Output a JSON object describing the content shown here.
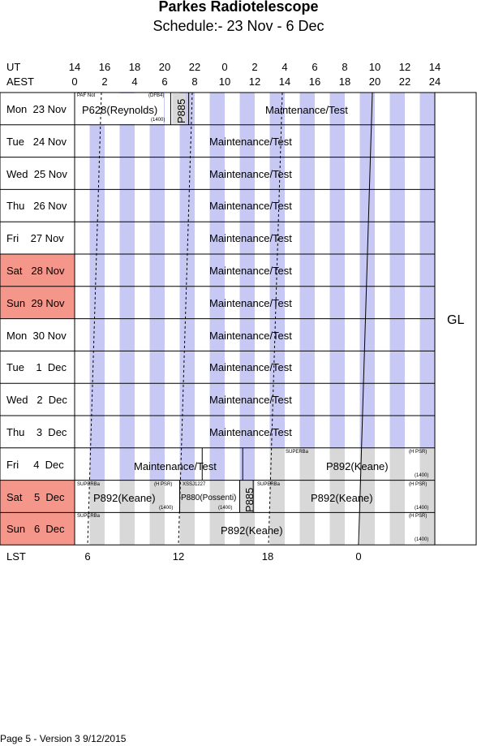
{
  "title": "Parkes Radiotelescope",
  "subtitle": "Schedule:- 23 Nov - 6  Dec",
  "axis": {
    "ut_label": "UT",
    "aest_label": "AEST",
    "ut_ticks": [
      "14",
      "16",
      "18",
      "20",
      "22",
      "0",
      "2",
      "4",
      "6",
      "8",
      "10",
      "12",
      "14"
    ],
    "aest_ticks": [
      "0",
      "2",
      "4",
      "6",
      "8",
      "10",
      "12",
      "14",
      "16",
      "18",
      "20",
      "22",
      "24"
    ],
    "lst_label": "LST",
    "lst_ticks": [
      "6",
      "12",
      "18",
      "0"
    ]
  },
  "days": [
    {
      "label": "Mon  23 Nov",
      "weekend": false
    },
    {
      "label": "Tue   24 Nov",
      "weekend": false
    },
    {
      "label": "Wed  25 Nov",
      "weekend": false
    },
    {
      "label": "Thu   26 Nov",
      "weekend": false
    },
    {
      "label": "Fri    27 Nov",
      "weekend": false
    },
    {
      "label": "Sat   28 Nov",
      "weekend": true
    },
    {
      "label": "Sun  29 Nov",
      "weekend": true
    },
    {
      "label": "Mon  30 Nov",
      "weekend": false
    },
    {
      "label": "Tue    1  Dec",
      "weekend": false
    },
    {
      "label": "Wed   2  Dec",
      "weekend": false
    },
    {
      "label": "Thu    3  Dec",
      "weekend": false
    },
    {
      "label": "Fri     4  Dec",
      "weekend": false
    },
    {
      "label": "Sat    5  Dec",
      "weekend": true
    },
    {
      "label": "Sun   6  Dec",
      "weekend": true
    }
  ],
  "blocks": {
    "maint": "Maintenance/Test",
    "p628": "P628(Reynolds)",
    "p885": "P885",
    "p892": "P892(Keane)",
    "p880": "P880(Possenti)",
    "paf_note": "PAF Not",
    "dfb4": "(DFB4)",
    "l1400": "(1400)",
    "superb": "SUPERBa",
    "hpsr": "(H PSR)",
    "xssj": "XSSJ1227"
  },
  "side_label": "GL",
  "footer": "Page 5 - Version 3  9/12/2015",
  "colors": {
    "stripe": "#c8c8f5",
    "weekend": "#f4978a",
    "gray": "#d8d8d8",
    "line": "#000000"
  }
}
